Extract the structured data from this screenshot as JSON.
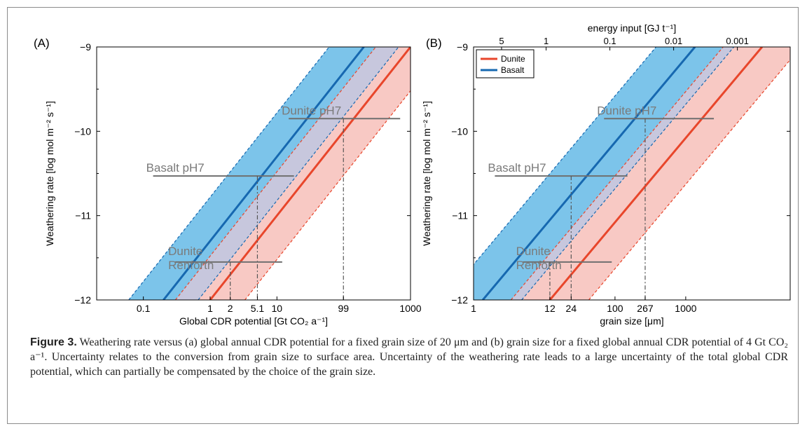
{
  "figure": {
    "caption_label": "Figure 3.",
    "caption_text": " Weathering rate versus (a) global annual CDR potential for a fixed grain size of 20 μm and (b) grain size for a fixed global annual CDR potential of 4 Gt CO₂ a⁻¹. Uncertainty relates to the conversion from grain size to surface area. Uncertainty of the weathering rate leads to a large uncertainty of the total global CDR potential, which can partially be compensated by the choice of the grain size."
  },
  "chart_data": [
    {
      "panel": "(A)",
      "type": "line",
      "xscale": "log",
      "xlim": [
        0.02,
        1000
      ],
      "ylim": [
        -12,
        -9
      ],
      "xlabel": "Global CDR potential [Gt CO₂ a⁻¹]",
      "ylabel": "Weathering rate [log mol m⁻² s⁻¹]",
      "xticks": [
        "0.1",
        "1",
        "2",
        "5.1",
        "10",
        "99",
        "1000"
      ],
      "xtick_values": [
        0.1,
        1,
        2,
        5.1,
        10,
        99,
        1000
      ],
      "yticks": [
        "−12",
        "−11",
        "−10",
        "−9"
      ],
      "ytick_values": [
        -12,
        -11,
        -10,
        -9
      ],
      "slope_decades_per_unit": 1,
      "bands": [
        {
          "name": "Basalt",
          "color": "#7cc4ea",
          "center_x_at_y12": 0.2,
          "half_width_decades": 0.52
        },
        {
          "name": "Dunite",
          "color": "#f6b7b0",
          "center_x_at_y12": 1.0,
          "half_width_decades": 0.52
        }
      ],
      "annotations": [
        {
          "text": "Dunite pH7",
          "y": -9.85,
          "x_from": 15,
          "x_to": 700,
          "drop_x": 99
        },
        {
          "text": "Basalt pH7",
          "y": -10.53,
          "x_from": 0.14,
          "x_to": 18,
          "drop_x": 5.1
        },
        {
          "text": "Dunite",
          "text2": "Renforth",
          "y": -11.55,
          "x_from": 0.3,
          "x_to": 12,
          "drop_x": 2
        }
      ]
    },
    {
      "panel": "(B)",
      "type": "line",
      "xscale": "log",
      "xlim": [
        1,
        30000
      ],
      "ylim": [
        -12,
        -9
      ],
      "xlabel": "grain size [μm]",
      "ylabel": "Weathering rate [log mol m⁻² s⁻¹]",
      "top_label": "energy input [GJ t⁻¹]",
      "xticks": [
        "1",
        "12",
        "24",
        "100",
        "267",
        "1000"
      ],
      "xtick_values": [
        1,
        12,
        24,
        100,
        267,
        1000
      ],
      "top_ticks": [
        "5",
        "1",
        "0.1",
        "0.01",
        "0.001"
      ],
      "top_tick_values": [
        5,
        1,
        0.1,
        0.01,
        0.001
      ],
      "yticks": [
        "−12",
        "−11",
        "−10",
        "−9"
      ],
      "ytick_values": [
        -12,
        -11,
        -10,
        -9
      ],
      "slope_decades_per_unit": 1,
      "legend": {
        "position": "top-left",
        "items": [
          {
            "name": "Dunite",
            "color": "#e8462b"
          },
          {
            "name": "Basalt",
            "color": "#1668b0"
          }
        ]
      },
      "bands": [
        {
          "name": "Basalt",
          "color": "#7cc4ea",
          "center_x_at_y12": 1.35,
          "half_width_decades": 0.55
        },
        {
          "name": "Dunite",
          "color": "#f6b7b0",
          "center_x_at_y12": 12,
          "half_width_decades": 0.55
        }
      ],
      "annotations": [
        {
          "text": "Dunite pH7",
          "y": -9.85,
          "x_from": 70,
          "x_to": 2500,
          "drop_x": 267
        },
        {
          "text": "Basalt pH7",
          "y": -10.53,
          "x_from": 2,
          "x_to": 150,
          "drop_x": 24
        },
        {
          "text": "Dunite",
          "text2": "Renforth",
          "y": -11.55,
          "x_from": 5,
          "x_to": 90,
          "drop_x": 12
        }
      ]
    }
  ]
}
